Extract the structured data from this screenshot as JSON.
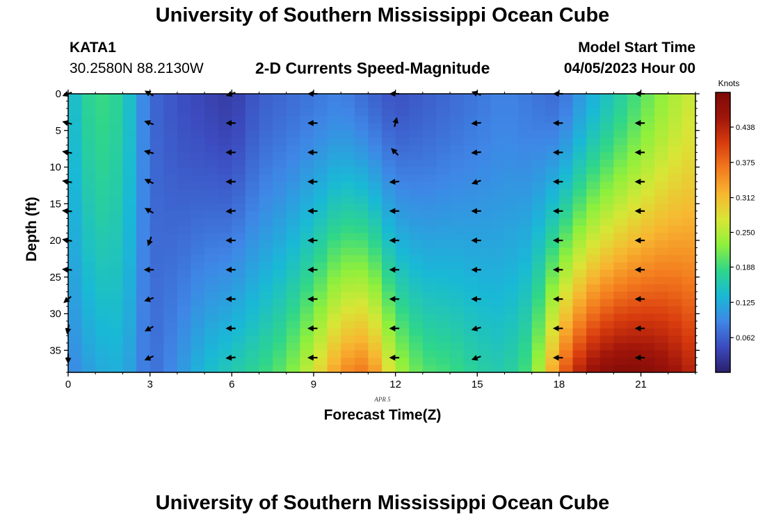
{
  "header": {
    "title": "University of Southern Mississippi Ocean Cube",
    "station": "KATA1",
    "coords": "30.2580N  88.2130W",
    "subtitle": "2-D Currents Speed-Magnitude",
    "model_label": "Model Start Time",
    "model_time": "04/05/2023 Hour 00"
  },
  "footer": {
    "title": "University of Southern Mississippi Ocean Cube"
  },
  "colors": {
    "ramp": [
      "#2a1f6b",
      "#3c4bbf",
      "#3f86e6",
      "#19b9d6",
      "#2fd68a",
      "#8ef03c",
      "#d8e636",
      "#f7b731",
      "#f37b1e",
      "#d93c0e",
      "#a0150a",
      "#7d0a06"
    ]
  },
  "chart_data": {
    "type": "heatmap",
    "title": "2-D Currents Speed-Magnitude",
    "xlabel": "Forecast Time(Z)",
    "ylabel": "Depth (ft)",
    "date_label": "APR 5",
    "xlim": [
      0,
      23
    ],
    "ylim": [
      38,
      0
    ],
    "x_ticks": [
      0,
      3,
      6,
      9,
      12,
      15,
      18,
      21
    ],
    "y_ticks": [
      0,
      5,
      10,
      15,
      20,
      25,
      30,
      35
    ],
    "colorbar": {
      "label": "Knots",
      "ticks": [
        0.062,
        0.125,
        0.188,
        0.25,
        0.312,
        0.375,
        0.438
      ],
      "tick_labels": [
        "0.062",
        "0.125",
        "0.188",
        "0.250",
        "0.312",
        "0.375",
        "0.438"
      ],
      "range": [
        0,
        0.5
      ]
    },
    "speed_profile_hours": [
      0,
      1,
      2,
      3,
      4,
      5,
      6,
      7,
      8,
      9,
      10,
      11,
      12,
      13,
      14,
      15,
      16,
      17,
      18,
      19,
      20,
      21,
      22,
      23
    ],
    "speed_surface_knots": [
      0.13,
      0.19,
      0.17,
      0.07,
      0.05,
      0.04,
      0.03,
      0.06,
      0.07,
      0.08,
      0.09,
      0.07,
      0.05,
      0.06,
      0.07,
      0.08,
      0.09,
      0.08,
      0.07,
      0.12,
      0.16,
      0.2,
      0.24,
      0.27
    ],
    "speed_bottom_knots": [
      0.09,
      0.12,
      0.13,
      0.07,
      0.1,
      0.14,
      0.16,
      0.18,
      0.21,
      0.27,
      0.35,
      0.37,
      0.25,
      0.2,
      0.19,
      0.17,
      0.16,
      0.2,
      0.37,
      0.46,
      0.49,
      0.49,
      0.47,
      0.43
    ],
    "vector_hours": [
      0,
      3,
      6,
      9,
      12,
      15,
      18,
      21
    ],
    "vector_depths_ft": [
      0,
      4,
      8,
      12,
      16,
      20,
      24,
      28,
      32,
      36
    ],
    "vector_directions_deg": [
      [
        200,
        150,
        200,
        180,
        180,
        160,
        180,
        180
      ],
      [
        165,
        160,
        180,
        180,
        75,
        185,
        180,
        180
      ],
      [
        170,
        165,
        180,
        180,
        135,
        185,
        180,
        180
      ],
      [
        170,
        155,
        180,
        180,
        185,
        200,
        180,
        180
      ],
      [
        175,
        150,
        185,
        180,
        180,
        180,
        180,
        180
      ],
      [
        170,
        250,
        180,
        180,
        180,
        180,
        180,
        180
      ],
      [
        175,
        180,
        180,
        180,
        180,
        180,
        180,
        180
      ],
      [
        220,
        200,
        180,
        180,
        180,
        180,
        180,
        180
      ],
      [
        260,
        210,
        180,
        180,
        180,
        195,
        180,
        180
      ],
      [
        270,
        205,
        185,
        180,
        180,
        200,
        180,
        180
      ]
    ]
  }
}
